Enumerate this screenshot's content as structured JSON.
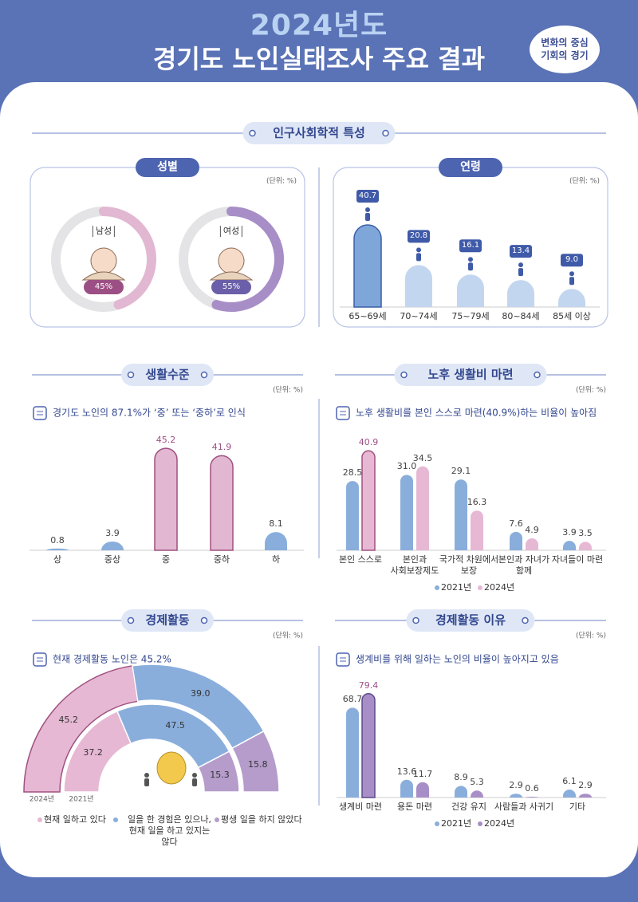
{
  "header": {
    "year": "2024년도",
    "title": "경기도 노인실태조사 주요 결과",
    "badge": [
      "변화의 중심",
      "기회의 경기"
    ]
  },
  "section": "인구사회학적 특성",
  "chart_data": [
    {
      "type": "donut",
      "title": "성별",
      "unit": "(단위: %)",
      "categories": [
        "남성",
        "여성"
      ],
      "values": [
        45,
        55
      ],
      "value_labels": [
        "45%",
        "55%"
      ],
      "colors": [
        "#e2b7d2",
        "#a88ec6"
      ],
      "label_colors": [
        "#9c4f84",
        "#6a5fa8"
      ]
    },
    {
      "type": "bar",
      "title": "연령",
      "unit": "(단위: %)",
      "categories": [
        "65~69세",
        "70~74세",
        "75~79세",
        "80~84세",
        "85세 이상"
      ],
      "values": [
        40.7,
        20.8,
        16.1,
        13.4,
        9.0
      ],
      "value_labels": [
        "40.7",
        "20.8",
        "16.1",
        "13.4",
        "9.0"
      ],
      "colors": [
        "#7fa6d9",
        "#c3d6ef",
        "#c3d6ef",
        "#c3d6ef",
        "#c3d6ef"
      ]
    },
    {
      "type": "bar",
      "title": "생활수준",
      "unit": "(단위: %)",
      "subtitle": "경기도 노인의 87.1%가 ‘중’ 또는 ‘중하’로 인식",
      "categories": [
        "상",
        "중상",
        "중",
        "중하",
        "하"
      ],
      "values": [
        0.8,
        3.9,
        45.2,
        41.9,
        8.1
      ],
      "value_labels": [
        "0.8",
        "3.9",
        "45.2",
        "41.9",
        "8.1"
      ],
      "colors": [
        "#8aaedc",
        "#8aaedc",
        "#e2b7d2",
        "#e2b7d2",
        "#8aaedc"
      ]
    },
    {
      "type": "grouped-bar",
      "title": "노후 생활비 마련",
      "unit": "(단위: %)",
      "subtitle": "노후 생활비를 본인 스스로 마련(40.9%)하는 비율이 높아짐",
      "categories": [
        "본인 스스로",
        "본인과 사회보장제도",
        "국가적 차원에서 보장",
        "본인과 자녀가 함께",
        "자녀들이 마련"
      ],
      "series": [
        {
          "name": "2021년",
          "color": "#8aaedc",
          "values": [
            28.5,
            31.0,
            29.1,
            7.6,
            3.9
          ],
          "value_labels": [
            "28.5",
            "31.0",
            "29.1",
            "7.6",
            "3.9"
          ]
        },
        {
          "name": "2024년",
          "color": "#e6b8d4",
          "values": [
            40.9,
            34.5,
            16.3,
            4.9,
            3.5
          ],
          "value_labels": [
            "40.9",
            "34.5",
            "16.3",
            "4.9",
            "3.5"
          ]
        }
      ]
    },
    {
      "type": "nested-semi-donut",
      "title": "경제활동",
      "unit": "(단위: %)",
      "subtitle": "현재 경제활동 노인은 45.2%",
      "categories": [
        "현재 일하고 있다",
        "일을 한 경험은 있으나, 현재 일을 하고 있지는 않다",
        "평생 일을 하지 않았다"
      ],
      "colors": [
        "#e6b8d4",
        "#8aaedc",
        "#b59ccb"
      ],
      "series": [
        {
          "name": "2024년",
          "values": [
            45.2,
            39.0,
            15.8
          ],
          "value_labels": [
            "45.2",
            "39.0",
            "15.8"
          ]
        },
        {
          "name": "2021년",
          "values": [
            37.2,
            47.5,
            15.3
          ],
          "value_labels": [
            "37.2",
            "47.5",
            "15.3"
          ]
        }
      ]
    },
    {
      "type": "grouped-bar",
      "title": "경제활동 이유",
      "unit": "(단위: %)",
      "subtitle": "생계비를 위해 일하는 노인의 비율이 높아지고 있음",
      "categories": [
        "생계비 마련",
        "용돈 마련",
        "건강 유지",
        "사람들과 사귀기",
        "기타"
      ],
      "series": [
        {
          "name": "2021년",
          "color": "#8aaedc",
          "values": [
            68.7,
            13.6,
            8.9,
            2.9,
            6.1
          ],
          "value_labels": [
            "68.7",
            "13.6",
            "8.9",
            "2.9",
            "6.1"
          ]
        },
        {
          "name": "2024년",
          "color": "#a88ec6",
          "values": [
            79.4,
            11.7,
            5.3,
            0.6,
            2.9
          ],
          "value_labels": [
            "79.4",
            "11.7",
            "5.3",
            "0.6",
            "2.9"
          ]
        }
      ]
    }
  ]
}
